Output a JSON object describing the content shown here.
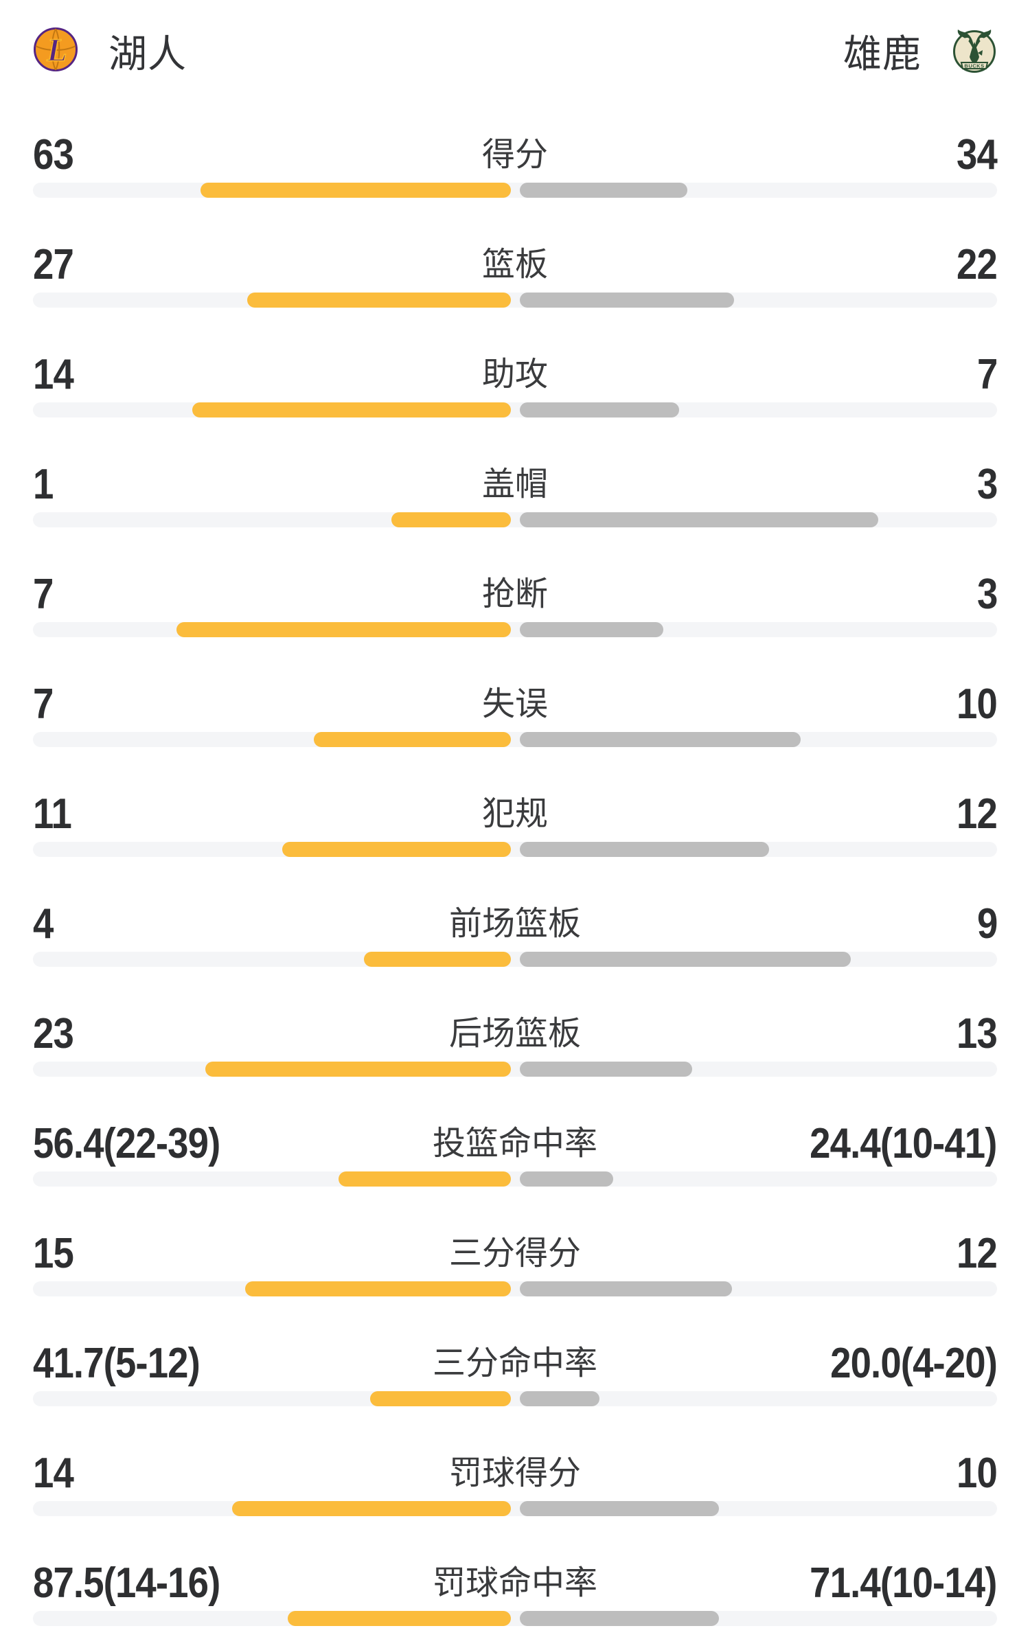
{
  "header": {
    "left_team": {
      "name": "湖人",
      "logo": "lakers-logo"
    },
    "right_team": {
      "name": "雄鹿",
      "logo": "bucks-logo"
    }
  },
  "colors": {
    "left_bar": "#FBBC3C",
    "right_bar": "#BDBDBD",
    "track": "#F4F5F7",
    "number_text": "#2E2F31",
    "label_text": "#3A3B3D",
    "lakers_purple": "#552583",
    "lakers_gold": "#FDB927",
    "lakers_orange": "#F49B20",
    "bucks_green": "#2C5234",
    "bucks_cream": "#EDE5CA",
    "background": "#FFFFFF"
  },
  "chart_data": {
    "type": "bar",
    "subtype": "paired-horizontal-bars-from-center",
    "teams": [
      "湖人",
      "雄鹿"
    ],
    "legend_position": "top",
    "grid": false,
    "rows": [
      {
        "label": "得分",
        "left": "63",
        "right": "34",
        "left_value": 63,
        "right_value": 34
      },
      {
        "label": "篮板",
        "left": "27",
        "right": "22",
        "left_value": 27,
        "right_value": 22
      },
      {
        "label": "助攻",
        "left": "14",
        "right": "7",
        "left_value": 14,
        "right_value": 7
      },
      {
        "label": "盖帽",
        "left": "1",
        "right": "3",
        "left_value": 1,
        "right_value": 3
      },
      {
        "label": "抢断",
        "left": "7",
        "right": "3",
        "left_value": 7,
        "right_value": 3
      },
      {
        "label": "失误",
        "left": "7",
        "right": "10",
        "left_value": 7,
        "right_value": 10
      },
      {
        "label": "犯规",
        "left": "11",
        "right": "12",
        "left_value": 11,
        "right_value": 12
      },
      {
        "label": "前场篮板",
        "left": "4",
        "right": "9",
        "left_value": 4,
        "right_value": 9
      },
      {
        "label": "后场篮板",
        "left": "23",
        "right": "13",
        "left_value": 23,
        "right_value": 13
      },
      {
        "label": "投篮命中率",
        "left": "56.4(22-39)",
        "right": "24.4(10-41)",
        "left_value": 56.4,
        "right_value": 24.4,
        "left_made": 22,
        "left_att": 39,
        "right_made": 10,
        "right_att": 41
      },
      {
        "label": "三分得分",
        "left": "15",
        "right": "12",
        "left_value": 15,
        "right_value": 12
      },
      {
        "label": "三分命中率",
        "left": "41.7(5-12)",
        "right": "20.0(4-20)",
        "left_value": 41.7,
        "right_value": 20.0,
        "left_made": 5,
        "left_att": 12,
        "right_made": 4,
        "right_att": 20
      },
      {
        "label": "罚球得分",
        "left": "14",
        "right": "10",
        "left_value": 14,
        "right_value": 10
      },
      {
        "label": "罚球命中率",
        "left": "87.5(14-16)",
        "right": "71.4(10-14)",
        "left_value": 87.5,
        "right_value": 71.4,
        "left_made": 14,
        "left_att": 16,
        "right_made": 10,
        "right_att": 14
      }
    ]
  }
}
